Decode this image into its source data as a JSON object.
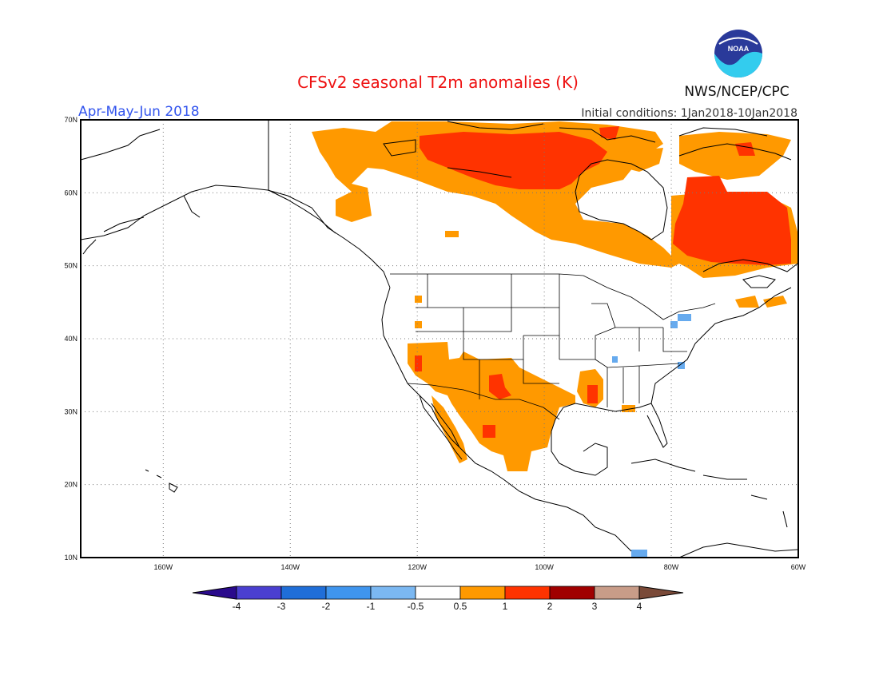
{
  "header": {
    "title": "CFSv2 seasonal T2m anomalies (K)",
    "season": "Apr-May-Jun 2018",
    "init_conditions": "Initial conditions: 1Jan2018-10Jan2018",
    "agency": "NWS/NCEP/CPC",
    "logo_text": "NOAA"
  },
  "map": {
    "lon_range": [
      -173,
      -60
    ],
    "lat_range": [
      10,
      70
    ],
    "lat_labels": [
      "70N",
      "60N",
      "50N",
      "40N",
      "30N",
      "20N",
      "10N"
    ],
    "lon_labels": [
      "160W",
      "140W",
      "120W",
      "100W",
      "80W",
      "60W"
    ],
    "colors": {
      "orange": "#ff9900",
      "red": "#ff3300",
      "light_blue": "#66aaee"
    }
  },
  "legend": {
    "labels": [
      "-4",
      "-3",
      "-2",
      "-1",
      "-0.5",
      "0.5",
      "1",
      "2",
      "3",
      "4"
    ],
    "colors": [
      "#2a0a8c",
      "#4a3fd0",
      "#1f6ed8",
      "#3f95ee",
      "#7bb8f2",
      "#ffffff",
      "#ff9900",
      "#ff3300",
      "#a00000",
      "#c89c88",
      "#7a4a38"
    ]
  }
}
